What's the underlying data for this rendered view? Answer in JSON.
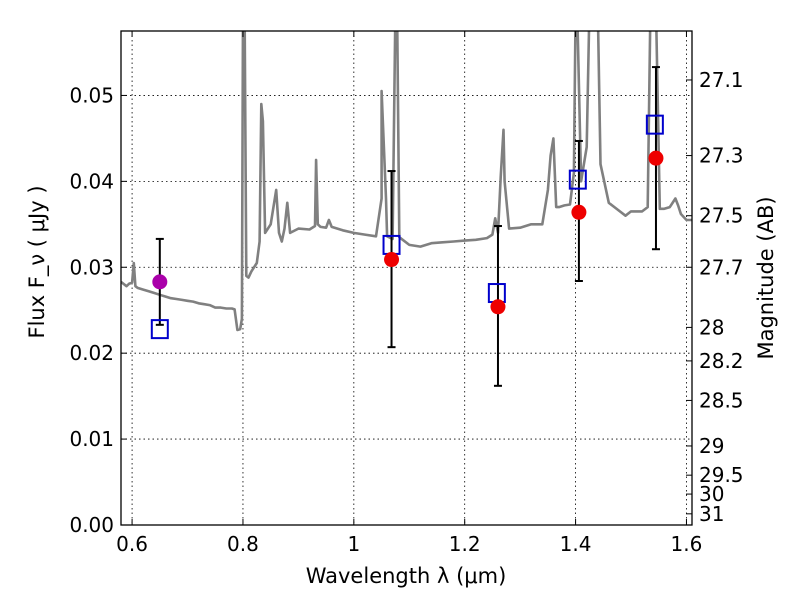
{
  "chart_data": {
    "type": "line",
    "xlabel": "Wavelength  λ (μm)",
    "ylabel": "Flux  F_ν ( μJy )",
    "ylabel_right": "Magnitude (AB)",
    "xlim": [
      0.58,
      1.61
    ],
    "ylim": [
      0.0,
      0.0575
    ],
    "grid": true,
    "xticks": [
      {
        "value": 0.6,
        "label": "0.6"
      },
      {
        "value": 0.8,
        "label": "0.8"
      },
      {
        "value": 1.0,
        "label": "1"
      },
      {
        "value": 1.2,
        "label": "1.2"
      },
      {
        "value": 1.4,
        "label": "1.4"
      },
      {
        "value": 1.6,
        "label": "1.6"
      }
    ],
    "yticks": [
      {
        "value": 0.0,
        "label": "0.00"
      },
      {
        "value": 0.01,
        "label": "0.01"
      },
      {
        "value": 0.02,
        "label": "0.02"
      },
      {
        "value": 0.03,
        "label": "0.03"
      },
      {
        "value": 0.04,
        "label": "0.04"
      },
      {
        "value": 0.05,
        "label": "0.05"
      }
    ],
    "right_ticks": [
      {
        "flux": 0.0518,
        "label": "27.1"
      },
      {
        "flux": 0.043,
        "label": "27.3"
      },
      {
        "flux": 0.036,
        "label": "27.5"
      },
      {
        "flux": 0.03,
        "label": "27.7"
      },
      {
        "flux": 0.023,
        "label": "28"
      },
      {
        "flux": 0.0191,
        "label": "28.2"
      },
      {
        "flux": 0.0145,
        "label": "28.5"
      },
      {
        "flux": 0.0092,
        "label": "29"
      },
      {
        "flux": 0.0058,
        "label": "29.5"
      },
      {
        "flux": 0.0036,
        "label": "30"
      },
      {
        "flux": 0.0013,
        "label": "31"
      }
    ],
    "model_spectrum": {
      "color": "#808080",
      "points": [
        [
          0.58,
          0.0283
        ],
        [
          0.59,
          0.0278
        ],
        [
          0.595,
          0.0281
        ],
        [
          0.6,
          0.0282
        ],
        [
          0.603,
          0.0305
        ],
        [
          0.606,
          0.0278
        ],
        [
          0.61,
          0.0276
        ],
        [
          0.62,
          0.0274
        ],
        [
          0.63,
          0.0272
        ],
        [
          0.64,
          0.027
        ],
        [
          0.65,
          0.0268
        ],
        [
          0.66,
          0.0266
        ],
        [
          0.67,
          0.0264
        ],
        [
          0.68,
          0.0263
        ],
        [
          0.69,
          0.0262
        ],
        [
          0.7,
          0.0261
        ],
        [
          0.71,
          0.026
        ],
        [
          0.72,
          0.0258
        ],
        [
          0.73,
          0.0257
        ],
        [
          0.74,
          0.0256
        ],
        [
          0.75,
          0.0253
        ],
        [
          0.76,
          0.0253
        ],
        [
          0.77,
          0.0252
        ],
        [
          0.78,
          0.0252
        ],
        [
          0.785,
          0.0251
        ],
        [
          0.79,
          0.0227
        ],
        [
          0.795,
          0.0228
        ],
        [
          0.798,
          0.024
        ],
        [
          0.8,
          0.06
        ],
        [
          0.803,
          0.06
        ],
        [
          0.806,
          0.029
        ],
        [
          0.81,
          0.0288
        ],
        [
          0.815,
          0.0295
        ],
        [
          0.82,
          0.03
        ],
        [
          0.825,
          0.0305
        ],
        [
          0.83,
          0.033
        ],
        [
          0.833,
          0.049
        ],
        [
          0.836,
          0.047
        ],
        [
          0.84,
          0.034
        ],
        [
          0.85,
          0.035
        ],
        [
          0.86,
          0.039
        ],
        [
          0.865,
          0.034
        ],
        [
          0.87,
          0.033
        ],
        [
          0.875,
          0.0345
        ],
        [
          0.88,
          0.0375
        ],
        [
          0.885,
          0.034
        ],
        [
          0.9,
          0.0345
        ],
        [
          0.92,
          0.0344
        ],
        [
          0.93,
          0.0348
        ],
        [
          0.932,
          0.0425
        ],
        [
          0.935,
          0.035
        ],
        [
          0.94,
          0.0347
        ],
        [
          0.95,
          0.0346
        ],
        [
          0.955,
          0.0355
        ],
        [
          0.96,
          0.0347
        ],
        [
          0.98,
          0.0343
        ],
        [
          1.0,
          0.034
        ],
        [
          1.02,
          0.0338
        ],
        [
          1.04,
          0.0336
        ],
        [
          1.05,
          0.038
        ],
        [
          1.05,
          0.0505
        ],
        [
          1.058,
          0.038
        ],
        [
          1.06,
          0.0336
        ],
        [
          1.07,
          0.0333
        ],
        [
          1.075,
          0.06
        ],
        [
          1.078,
          0.06
        ],
        [
          1.082,
          0.0335
        ],
        [
          1.1,
          0.0326
        ],
        [
          1.12,
          0.0324
        ],
        [
          1.14,
          0.0328
        ],
        [
          1.16,
          0.0329
        ],
        [
          1.18,
          0.033
        ],
        [
          1.2,
          0.0331
        ],
        [
          1.22,
          0.0332
        ],
        [
          1.24,
          0.0334
        ],
        [
          1.25,
          0.0338
        ],
        [
          1.255,
          0.0357
        ],
        [
          1.26,
          0.034
        ],
        [
          1.265,
          0.0405
        ],
        [
          1.27,
          0.046
        ],
        [
          1.272,
          0.04
        ],
        [
          1.28,
          0.0345
        ],
        [
          1.3,
          0.0346
        ],
        [
          1.32,
          0.035
        ],
        [
          1.34,
          0.035
        ],
        [
          1.35,
          0.039
        ],
        [
          1.355,
          0.043
        ],
        [
          1.36,
          0.045
        ],
        [
          1.365,
          0.037
        ],
        [
          1.37,
          0.037
        ],
        [
          1.38,
          0.0372
        ],
        [
          1.39,
          0.0373
        ],
        [
          1.397,
          0.041
        ],
        [
          1.4,
          0.06
        ],
        [
          1.403,
          0.06
        ],
        [
          1.41,
          0.04
        ],
        [
          1.42,
          0.044
        ],
        [
          1.425,
          0.06
        ],
        [
          1.44,
          0.06
        ],
        [
          1.445,
          0.042
        ],
        [
          1.46,
          0.0375
        ],
        [
          1.47,
          0.037
        ],
        [
          1.48,
          0.0365
        ],
        [
          1.49,
          0.036
        ],
        [
          1.5,
          0.0365
        ],
        [
          1.52,
          0.0365
        ],
        [
          1.53,
          0.037
        ],
        [
          1.535,
          0.06
        ],
        [
          1.545,
          0.06
        ],
        [
          1.552,
          0.0368
        ],
        [
          1.56,
          0.0368
        ],
        [
          1.57,
          0.037
        ],
        [
          1.58,
          0.038
        ],
        [
          1.585,
          0.0372
        ],
        [
          1.59,
          0.0362
        ],
        [
          1.6,
          0.0355
        ],
        [
          1.61,
          0.0355
        ]
      ]
    },
    "series": [
      {
        "marker": "square-open",
        "color": "#0000cc",
        "points": [
          {
            "x": 0.65,
            "y": 0.0228
          },
          {
            "x": 1.068,
            "y": 0.0326
          },
          {
            "x": 1.258,
            "y": 0.027
          },
          {
            "x": 1.404,
            "y": 0.0402
          },
          {
            "x": 1.543,
            "y": 0.0466
          }
        ]
      },
      {
        "marker": "circle-filled",
        "color": "#ee0000",
        "points": [
          {
            "x": 0.65,
            "y": 0.0283,
            "yerr_low": 0.0233,
            "yerr_high": 0.0333,
            "color": "#aa00aa"
          },
          {
            "x": 1.068,
            "y": 0.0309,
            "yerr_low": 0.0207,
            "yerr_high": 0.0412
          },
          {
            "x": 1.26,
            "y": 0.0254,
            "yerr_low": 0.0162,
            "yerr_high": 0.0348
          },
          {
            "x": 1.406,
            "y": 0.0364,
            "yerr_low": 0.0284,
            "yerr_high": 0.0447
          },
          {
            "x": 1.545,
            "y": 0.0427,
            "yerr_low": 0.0321,
            "yerr_high": 0.0533
          }
        ]
      }
    ]
  }
}
